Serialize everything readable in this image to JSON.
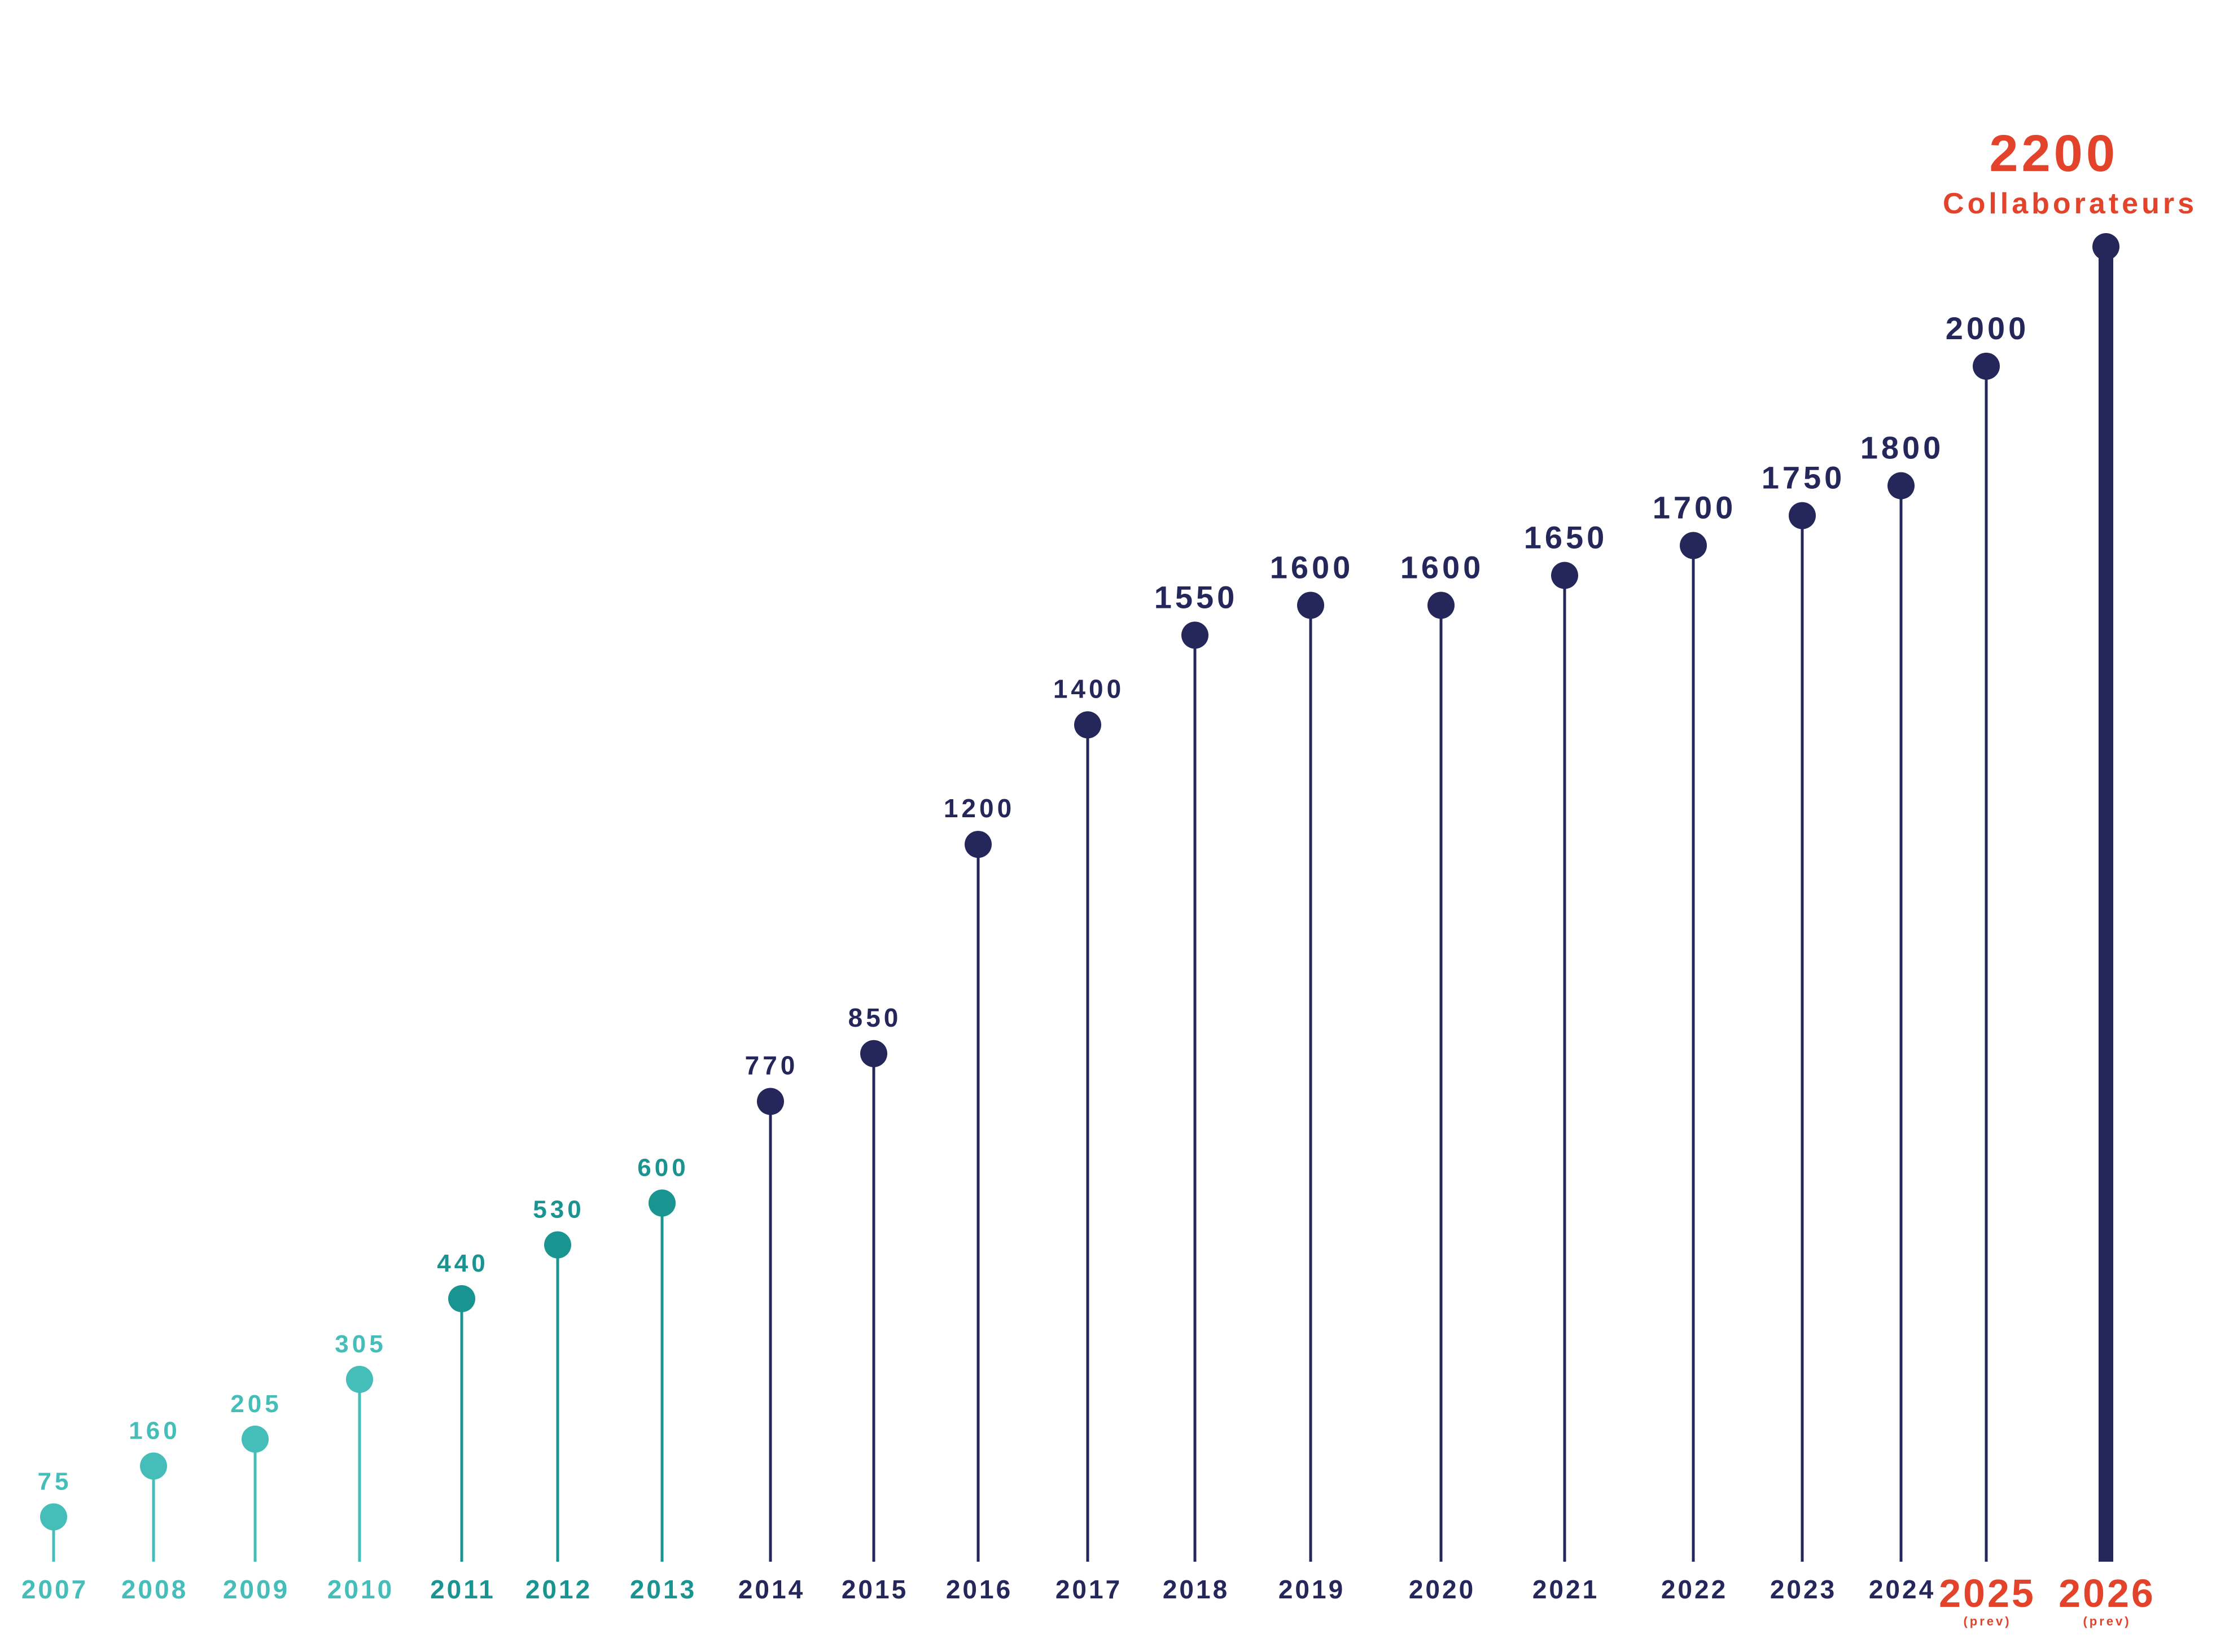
{
  "chart_data": {
    "type": "lollipop",
    "ylim": [
      0,
      2200
    ],
    "grid": false,
    "legend": "none",
    "colors": {
      "teal_light": "#45bdb8",
      "teal_dark": "#1a9490",
      "navy": "#25265a",
      "forecast": "#e2432a"
    },
    "highlight": {
      "value": "2200",
      "label": "Collaborateurs"
    },
    "forecast_note": "(prev)",
    "points": [
      {
        "year": "2007",
        "value": 75,
        "label": "75",
        "style": "teal_light"
      },
      {
        "year": "2008",
        "value": 160,
        "label": "160",
        "style": "teal_light"
      },
      {
        "year": "2009",
        "value": 205,
        "label": "205",
        "style": "teal_light"
      },
      {
        "year": "2010",
        "value": 305,
        "label": "305",
        "style": "teal_light"
      },
      {
        "year": "2011",
        "value": 440,
        "label": "440",
        "style": "teal_dark"
      },
      {
        "year": "2012",
        "value": 530,
        "label": "530",
        "style": "teal_dark"
      },
      {
        "year": "2013",
        "value": 600,
        "label": "600",
        "style": "teal_dark"
      },
      {
        "year": "2014",
        "value": 770,
        "label": "770",
        "style": "navy"
      },
      {
        "year": "2015",
        "value": 850,
        "label": "850",
        "style": "navy"
      },
      {
        "year": "2016",
        "value": 1200,
        "label": "1200",
        "style": "navy"
      },
      {
        "year": "2017",
        "value": 1400,
        "label": "1400",
        "style": "navy"
      },
      {
        "year": "2018",
        "value": 1550,
        "label": "1550",
        "style": "navy"
      },
      {
        "year": "2019",
        "value": 1600,
        "label": "1600",
        "style": "navy"
      },
      {
        "year": "2020",
        "value": 1600,
        "label": "1600",
        "style": "navy"
      },
      {
        "year": "2021",
        "value": 1650,
        "label": "1650",
        "style": "navy"
      },
      {
        "year": "2022",
        "value": 1700,
        "label": "1700",
        "style": "navy"
      },
      {
        "year": "2023",
        "value": 1750,
        "label": "1750",
        "style": "navy"
      },
      {
        "year": "2024",
        "value": 1800,
        "label": "1800",
        "style": "navy"
      },
      {
        "year": "2025",
        "value": 2000,
        "label": "2000",
        "style": "navy",
        "forecast": true
      },
      {
        "year": "2026",
        "value": 2200,
        "label": "",
        "style": "navy",
        "forecast": true,
        "highlight": true
      }
    ]
  }
}
